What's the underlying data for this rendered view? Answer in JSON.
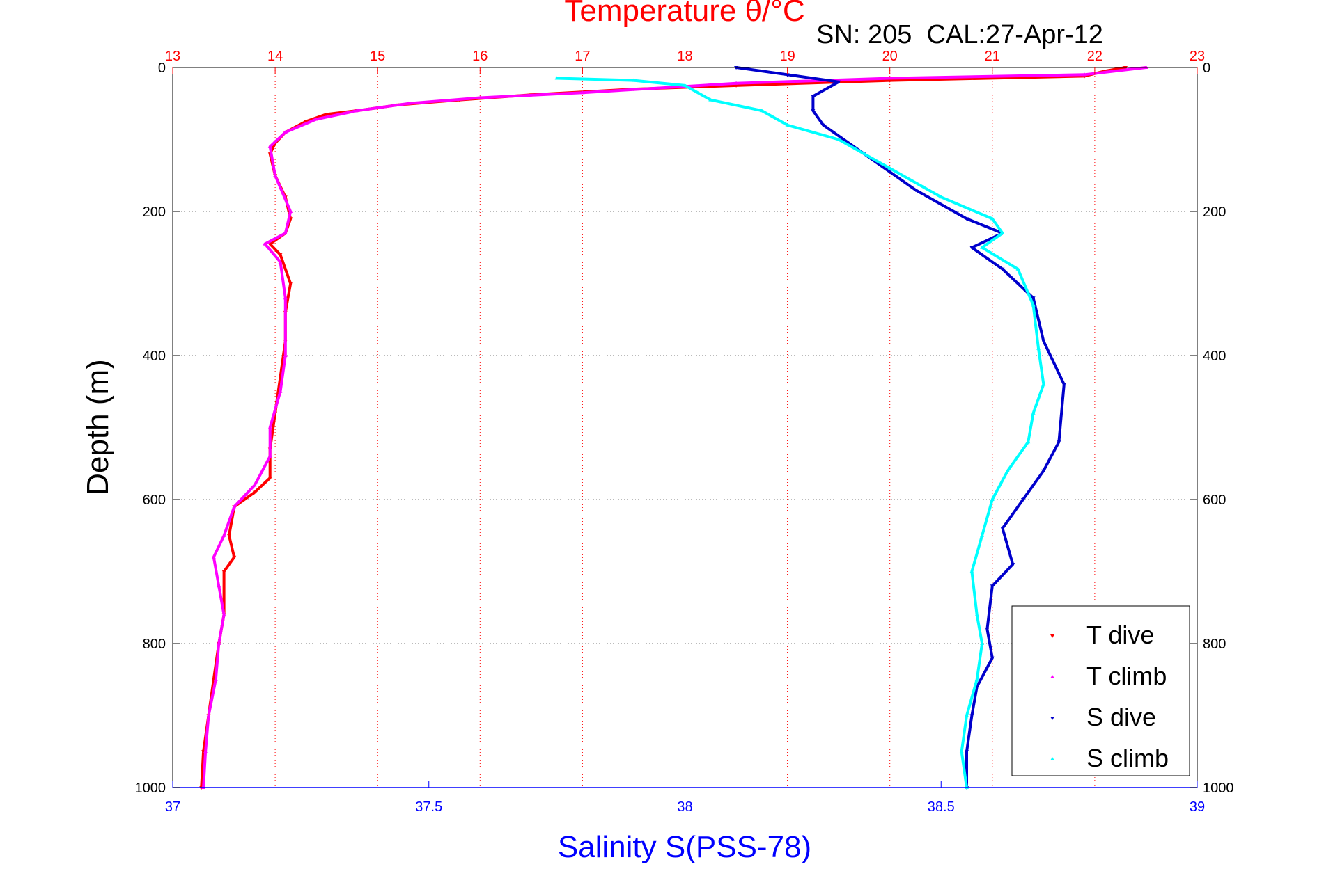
{
  "chart_data": {
    "type": "scatter",
    "title": "Temperature θ/°C",
    "subtitle": "SN: 205  CAL:27-Apr-12",
    "xlabel": "Salinity S(PSS-78)",
    "ylabel": "Depth (m)",
    "x_temp_lim": [
      13,
      23
    ],
    "x_sal_lim": [
      37,
      39
    ],
    "ylim": [
      0,
      1000
    ],
    "y_reversed": true,
    "temp_ticks": [
      "13",
      "14",
      "15",
      "16",
      "17",
      "18",
      "19",
      "20",
      "21",
      "22",
      "23"
    ],
    "sal_ticks": [
      "37",
      "37.5",
      "38",
      "38.5",
      "39"
    ],
    "depth_ticks": [
      "0",
      "200",
      "400",
      "600",
      "800",
      "1000"
    ],
    "grid": true,
    "legend_position": "bottom-right",
    "colors": {
      "temp_axis": "#ff0000",
      "sal_axis": "#0000ff",
      "t_dive": "#ff0000",
      "t_climb": "#ff00ff",
      "s_dive": "#0000cc",
      "s_climb": "#00ffff"
    },
    "series": [
      {
        "name": "T dive",
        "axis": "temperature",
        "marker": "down-triangle",
        "points": [
          [
            22.3,
            0
          ],
          [
            22.1,
            5
          ],
          [
            21.9,
            12
          ],
          [
            20.0,
            18
          ],
          [
            18.5,
            25
          ],
          [
            17.5,
            30
          ],
          [
            16.5,
            38
          ],
          [
            15.8,
            45
          ],
          [
            15.2,
            52
          ],
          [
            14.8,
            60
          ],
          [
            14.5,
            65
          ],
          [
            14.3,
            75
          ],
          [
            14.1,
            90
          ],
          [
            14.0,
            105
          ],
          [
            13.95,
            120
          ],
          [
            14.0,
            150
          ],
          [
            14.1,
            180
          ],
          [
            14.15,
            210
          ],
          [
            14.1,
            230
          ],
          [
            13.95,
            245
          ],
          [
            14.05,
            260
          ],
          [
            14.15,
            300
          ],
          [
            14.1,
            340
          ],
          [
            14.1,
            380
          ],
          [
            14.05,
            430
          ],
          [
            14.0,
            480
          ],
          [
            13.95,
            530
          ],
          [
            13.95,
            570
          ],
          [
            13.8,
            590
          ],
          [
            13.6,
            610
          ],
          [
            13.55,
            650
          ],
          [
            13.6,
            680
          ],
          [
            13.5,
            700
          ],
          [
            13.5,
            760
          ],
          [
            13.45,
            800
          ],
          [
            13.4,
            850
          ],
          [
            13.35,
            900
          ],
          [
            13.3,
            950
          ],
          [
            13.28,
            1000
          ]
        ]
      },
      {
        "name": "T climb",
        "axis": "temperature",
        "marker": "up-triangle",
        "points": [
          [
            22.5,
            0
          ],
          [
            21.9,
            10
          ],
          [
            20.0,
            15
          ],
          [
            18.5,
            22
          ],
          [
            17.0,
            35
          ],
          [
            16.0,
            42
          ],
          [
            15.3,
            50
          ],
          [
            14.8,
            60
          ],
          [
            14.4,
            72
          ],
          [
            14.1,
            90
          ],
          [
            13.95,
            110
          ],
          [
            14.0,
            150
          ],
          [
            14.15,
            200
          ],
          [
            14.1,
            230
          ],
          [
            13.9,
            245
          ],
          [
            14.05,
            270
          ],
          [
            14.1,
            320
          ],
          [
            14.1,
            400
          ],
          [
            14.05,
            450
          ],
          [
            13.95,
            500
          ],
          [
            13.95,
            540
          ],
          [
            13.8,
            580
          ],
          [
            13.6,
            610
          ],
          [
            13.5,
            650
          ],
          [
            13.4,
            680
          ],
          [
            13.45,
            720
          ],
          [
            13.5,
            760
          ],
          [
            13.45,
            800
          ],
          [
            13.42,
            850
          ],
          [
            13.35,
            900
          ],
          [
            13.32,
            950
          ],
          [
            13.3,
            1000
          ]
        ]
      },
      {
        "name": "S dive",
        "axis": "salinity",
        "marker": "down-triangle",
        "points": [
          [
            38.1,
            0
          ],
          [
            38.2,
            10
          ],
          [
            38.3,
            20
          ],
          [
            38.25,
            40
          ],
          [
            38.25,
            60
          ],
          [
            38.27,
            80
          ],
          [
            38.35,
            120
          ],
          [
            38.45,
            170
          ],
          [
            38.55,
            210
          ],
          [
            38.62,
            230
          ],
          [
            38.56,
            250
          ],
          [
            38.62,
            280
          ],
          [
            38.68,
            320
          ],
          [
            38.7,
            380
          ],
          [
            38.74,
            440
          ],
          [
            38.73,
            520
          ],
          [
            38.7,
            560
          ],
          [
            38.66,
            600
          ],
          [
            38.62,
            640
          ],
          [
            38.64,
            690
          ],
          [
            38.6,
            720
          ],
          [
            38.59,
            780
          ],
          [
            38.6,
            820
          ],
          [
            38.57,
            860
          ],
          [
            38.56,
            900
          ],
          [
            38.55,
            950
          ],
          [
            38.55,
            1000
          ]
        ]
      },
      {
        "name": "S climb",
        "axis": "salinity",
        "marker": "up-triangle",
        "points": [
          [
            37.75,
            15
          ],
          [
            37.9,
            18
          ],
          [
            38.0,
            25
          ],
          [
            38.05,
            45
          ],
          [
            38.15,
            60
          ],
          [
            38.2,
            80
          ],
          [
            38.3,
            100
          ],
          [
            38.4,
            140
          ],
          [
            38.5,
            180
          ],
          [
            38.6,
            210
          ],
          [
            38.62,
            230
          ],
          [
            38.58,
            250
          ],
          [
            38.65,
            280
          ],
          [
            38.68,
            330
          ],
          [
            38.69,
            390
          ],
          [
            38.7,
            440
          ],
          [
            38.68,
            480
          ],
          [
            38.67,
            520
          ],
          [
            38.63,
            560
          ],
          [
            38.6,
            600
          ],
          [
            38.58,
            650
          ],
          [
            38.56,
            700
          ],
          [
            38.57,
            760
          ],
          [
            38.58,
            800
          ],
          [
            38.57,
            850
          ],
          [
            38.55,
            900
          ],
          [
            38.54,
            950
          ],
          [
            38.55,
            1000
          ]
        ]
      }
    ]
  }
}
